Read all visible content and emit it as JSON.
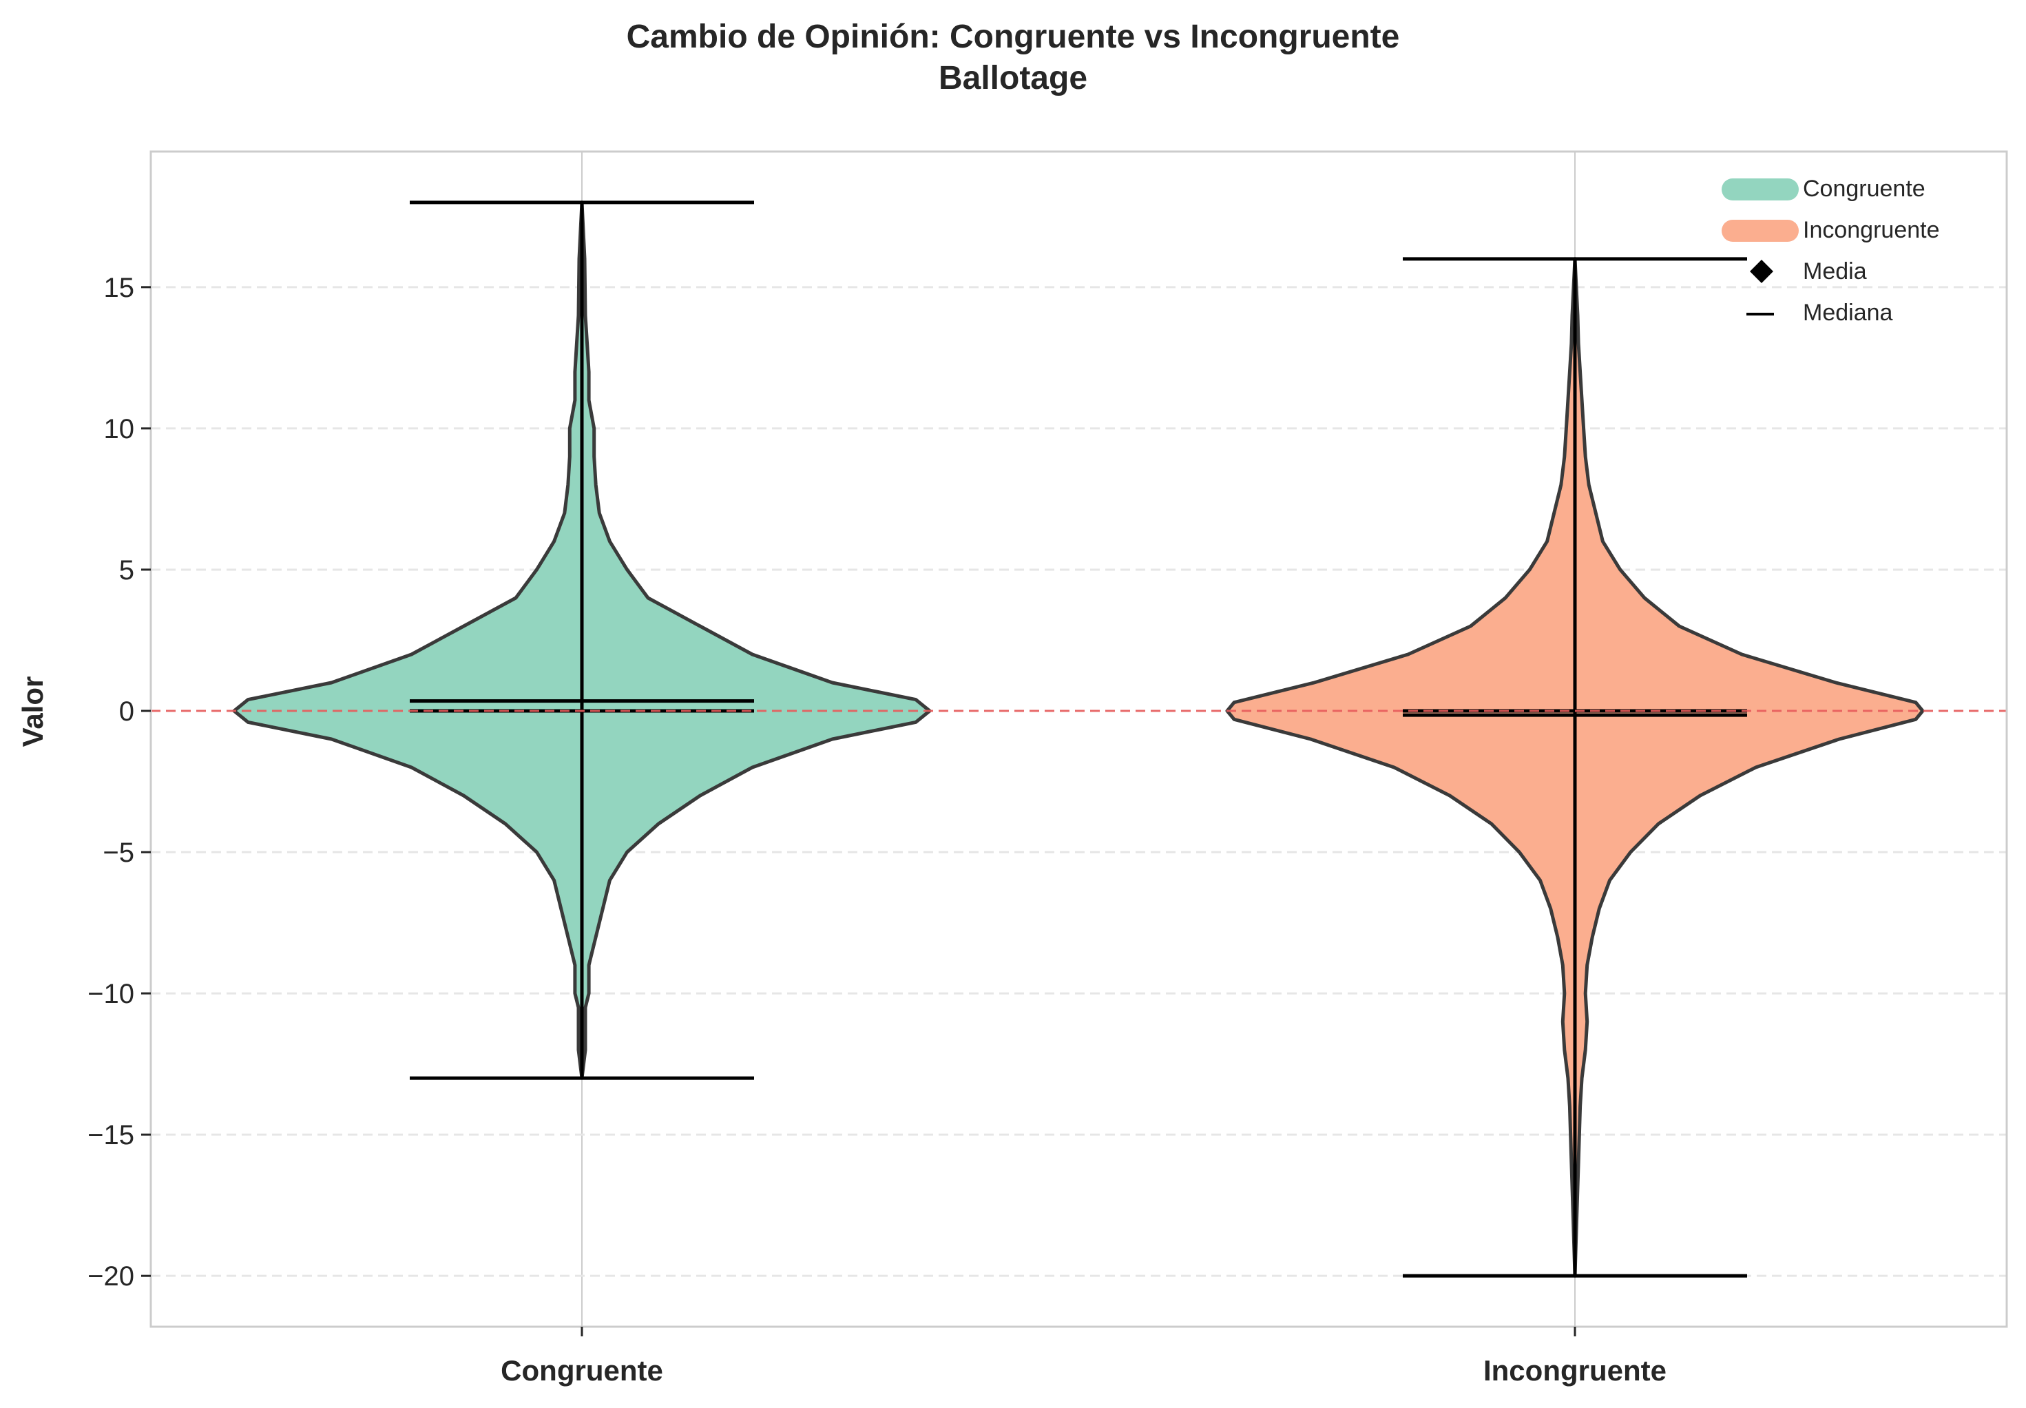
{
  "title_line1": "Cambio de Opinión: Congruente vs Incongruente",
  "title_line2": "Ballotage",
  "chart_data": {
    "type": "violin",
    "title": "Cambio de Opinión: Congruente vs Incongruente\nBallotage",
    "xlabel": "",
    "ylabel": "Valor",
    "categories": [
      "Congruente",
      "Incongruente"
    ],
    "ylim": [
      -21.8,
      19.8
    ],
    "yticks": [
      -20,
      -15,
      -10,
      -5,
      0,
      5,
      10,
      15
    ],
    "ytick_labels": [
      "−20",
      "−15",
      "−10",
      "−5",
      "0",
      "5",
      "10",
      "15"
    ],
    "grid": "y-dashed",
    "reference_line": {
      "y": 0,
      "color": "#e85c5c",
      "style": "dashed"
    },
    "legend_position": "upper right",
    "series": [
      {
        "name": "Congruente",
        "color": "#93d5bf",
        "min": -13,
        "max": 18,
        "mean": 0.35,
        "median": 0,
        "density": [
          [
            -13,
            0.0
          ],
          [
            -12,
            0.01
          ],
          [
            -11,
            0.01
          ],
          [
            -10.5,
            0.01
          ],
          [
            -10,
            0.02
          ],
          [
            -9,
            0.02
          ],
          [
            -8,
            0.04
          ],
          [
            -7,
            0.06
          ],
          [
            -6,
            0.08
          ],
          [
            -5,
            0.13
          ],
          [
            -4,
            0.22
          ],
          [
            -3,
            0.34
          ],
          [
            -2,
            0.49
          ],
          [
            -1,
            0.72
          ],
          [
            -0.4,
            0.96
          ],
          [
            0,
            1.0
          ],
          [
            0.4,
            0.96
          ],
          [
            1,
            0.72
          ],
          [
            2,
            0.49
          ],
          [
            3,
            0.34
          ],
          [
            4,
            0.19
          ],
          [
            5,
            0.13
          ],
          [
            6,
            0.08
          ],
          [
            7,
            0.05
          ],
          [
            8,
            0.04
          ],
          [
            9,
            0.035
          ],
          [
            10,
            0.035
          ],
          [
            11,
            0.02
          ],
          [
            12,
            0.02
          ],
          [
            13,
            0.015
          ],
          [
            14,
            0.01
          ],
          [
            16,
            0.008
          ],
          [
            18,
            0.0
          ]
        ]
      },
      {
        "name": "Incongruente",
        "color": "#fbae8f",
        "min": -20,
        "max": 16,
        "mean": -0.15,
        "median": 0,
        "density": [
          [
            -20,
            0.0
          ],
          [
            -18,
            0.005
          ],
          [
            -16,
            0.01
          ],
          [
            -14,
            0.015
          ],
          [
            -13,
            0.02
          ],
          [
            -12,
            0.03
          ],
          [
            -11,
            0.035
          ],
          [
            -10,
            0.03
          ],
          [
            -9,
            0.035
          ],
          [
            -8,
            0.05
          ],
          [
            -7,
            0.07
          ],
          [
            -6,
            0.1
          ],
          [
            -5,
            0.16
          ],
          [
            -4,
            0.24
          ],
          [
            -3,
            0.36
          ],
          [
            -2,
            0.52
          ],
          [
            -1,
            0.76
          ],
          [
            -0.3,
            0.98
          ],
          [
            0,
            1.0
          ],
          [
            0.3,
            0.98
          ],
          [
            1,
            0.75
          ],
          [
            2,
            0.48
          ],
          [
            3,
            0.3
          ],
          [
            4,
            0.2
          ],
          [
            5,
            0.13
          ],
          [
            6,
            0.08
          ],
          [
            7,
            0.06
          ],
          [
            8,
            0.04
          ],
          [
            9,
            0.03
          ],
          [
            10,
            0.025
          ],
          [
            11,
            0.02
          ],
          [
            12,
            0.015
          ],
          [
            13,
            0.01
          ],
          [
            14,
            0.008
          ],
          [
            16,
            0.0
          ]
        ]
      }
    ]
  },
  "legend": {
    "items": [
      {
        "label": "Congruente",
        "kind": "patch",
        "color": "#93d5bf"
      },
      {
        "label": "Incongruente",
        "kind": "patch",
        "color": "#fbae8f"
      },
      {
        "label": "Media",
        "kind": "diamond",
        "color": "#000000"
      },
      {
        "label": "Mediana",
        "kind": "line",
        "color": "#000000"
      }
    ]
  }
}
